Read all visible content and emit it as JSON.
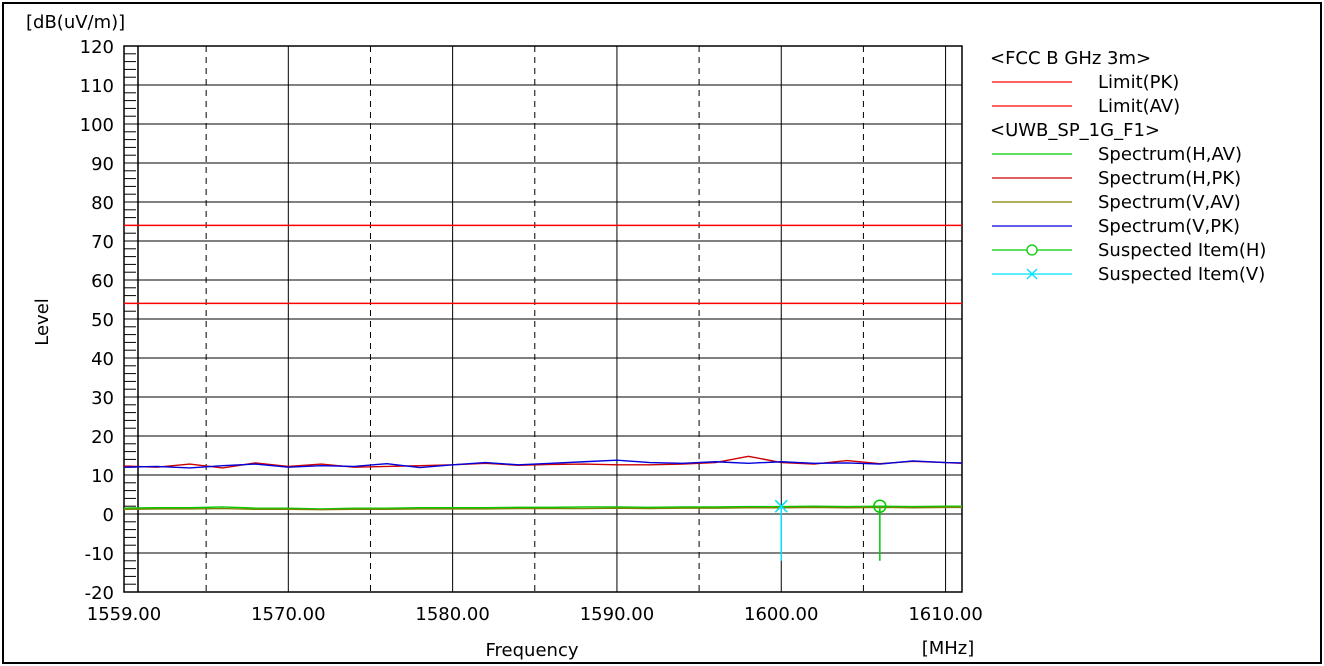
{
  "chart_data": {
    "type": "line",
    "title": "",
    "xlabel": "Frequency",
    "ylabel": "Level",
    "y_unit": "[dB(uV/m)]",
    "x_unit": "[MHz]",
    "xlim": [
      1559,
      1610
    ],
    "ylim": [
      -20,
      120
    ],
    "grid": true,
    "legend_position": "right",
    "x_ticks": [
      "1559.00",
      "1570.00",
      "1580.00",
      "1590.00",
      "1600.00",
      "1610.00"
    ],
    "x_tick_values": [
      1559,
      1569,
      1579,
      1589,
      1599,
      1609
    ],
    "x_dashed_grid": [
      1564,
      1574,
      1584,
      1594,
      1604
    ],
    "y_ticks": [
      -20,
      -10,
      0,
      10,
      20,
      30,
      40,
      50,
      60,
      70,
      80,
      90,
      100,
      110,
      120
    ],
    "legend_groups": [
      {
        "header": "<FCC B GHz 3m>",
        "entries": [
          {
            "label": "Limit(PK)",
            "color": "#ff0000",
            "marker": "none"
          },
          {
            "label": "Limit(AV)",
            "color": "#ff0000",
            "marker": "none"
          }
        ]
      },
      {
        "header": "<UWB_SP_1G_F1>",
        "entries": [
          {
            "label": "Spectrum(H,AV)",
            "color": "#00cc00",
            "marker": "none"
          },
          {
            "label": "Spectrum(H,PK)",
            "color": "#cc0000",
            "marker": "none"
          },
          {
            "label": "Spectrum(V,AV)",
            "color": "#808000",
            "marker": "none"
          },
          {
            "label": "Spectrum(V,PK)",
            "color": "#0000dd",
            "marker": "none"
          },
          {
            "label": "Suspected Item(H)",
            "color": "#00cc00",
            "marker": "circle"
          },
          {
            "label": "Suspected Item(V)",
            "color": "#00e0ff",
            "marker": "x"
          }
        ]
      }
    ],
    "limits": [
      {
        "name": "Limit(PK)",
        "value": 74,
        "color": "#ff0000"
      },
      {
        "name": "Limit(AV)",
        "value": 54,
        "color": "#ff0000"
      }
    ],
    "x": [
      1559,
      1561,
      1563,
      1565,
      1567,
      1569,
      1571,
      1573,
      1575,
      1577,
      1579,
      1581,
      1583,
      1585,
      1587,
      1589,
      1591,
      1593,
      1595,
      1597,
      1599,
      1601,
      1603,
      1605,
      1607,
      1609,
      1610
    ],
    "series": [
      {
        "name": "Spectrum(H,PK)",
        "color": "#cc0000",
        "values": [
          12.3,
          12.0,
          12.8,
          11.8,
          13.1,
          12.2,
          12.8,
          12.0,
          12.2,
          12.4,
          12.6,
          13.0,
          12.5,
          12.7,
          12.8,
          12.6,
          12.6,
          12.8,
          13.2,
          14.8,
          13.2,
          12.8,
          13.7,
          12.9,
          13.5,
          13.2,
          13.0
        ]
      },
      {
        "name": "Spectrum(V,PK)",
        "color": "#0000dd",
        "values": [
          12.0,
          12.2,
          11.8,
          12.4,
          12.8,
          12.0,
          12.4,
          12.2,
          12.9,
          11.9,
          12.6,
          13.2,
          12.6,
          13.0,
          13.4,
          13.8,
          13.2,
          13.0,
          13.4,
          13.0,
          13.4,
          13.0,
          13.1,
          12.8,
          13.6,
          13.2,
          13.1
        ]
      },
      {
        "name": "Spectrum(H,AV)",
        "color": "#00cc00",
        "values": [
          1.5,
          1.6,
          1.6,
          1.8,
          1.5,
          1.5,
          1.3,
          1.5,
          1.5,
          1.6,
          1.6,
          1.6,
          1.7,
          1.7,
          1.8,
          1.8,
          1.7,
          1.8,
          1.8,
          1.9,
          1.9,
          2.0,
          1.9,
          2.0,
          1.9,
          2.0,
          2.0
        ]
      },
      {
        "name": "Spectrum(V,AV)",
        "color": "#808000",
        "values": [
          1.2,
          1.3,
          1.3,
          1.4,
          1.2,
          1.2,
          1.1,
          1.2,
          1.2,
          1.3,
          1.3,
          1.3,
          1.4,
          1.4,
          1.4,
          1.5,
          1.4,
          1.5,
          1.5,
          1.6,
          1.6,
          1.7,
          1.6,
          1.7,
          1.6,
          1.7,
          1.7
        ]
      }
    ],
    "suspected": [
      {
        "name": "Suspected Item(V)",
        "x": 1599.0,
        "y": 2.0,
        "color": "#00e0ff",
        "marker": "x"
      },
      {
        "name": "Suspected Item(H)",
        "x": 1605.0,
        "y": 2.0,
        "color": "#00cc00",
        "marker": "circle"
      }
    ]
  }
}
